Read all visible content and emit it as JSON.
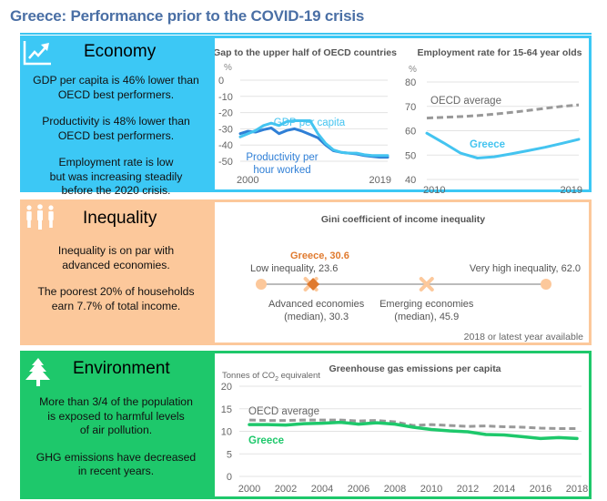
{
  "page": {
    "title": "Greece: Performance prior to the COVID-19 crisis"
  },
  "colors": {
    "economy": "#3cc8f5",
    "inequality": "#fcc89b",
    "environment": "#1ec86b",
    "title": "#4a6fa5",
    "gdp_line": "#44c4f0",
    "productivity_line": "#2f7fd6",
    "oecd_dashed": "#999999",
    "greece_orange": "#e07a2e",
    "greece_green": "#1ec86b"
  },
  "economy": {
    "icon": "trending-up-chart-icon",
    "heading": "Economy",
    "texts": [
      [
        "GDP per capita is 46% lower than",
        "OECD best performers."
      ],
      [
        "Productivity is 48% lower than",
        "OECD best performers."
      ],
      [
        "Employment rate is low",
        "but was increasing steadily",
        "before the 2020 crisis."
      ]
    ]
  },
  "inequality": {
    "icon": "people-group-icon",
    "heading": "Inequality",
    "texts": [
      [
        "Inequality is on par with",
        "advanced economies."
      ],
      [
        "The poorest 20% of households",
        "earn 7.7% of total income."
      ]
    ]
  },
  "environment": {
    "icon": "pine-tree-icon",
    "heading": "Environment",
    "texts": [
      [
        "More than 3/4 of the population",
        "is exposed to harmful levels",
        "of air pollution."
      ],
      [
        "GHG emissions have decreased",
        "in recent years."
      ]
    ]
  },
  "chart_data": [
    {
      "id": "gap",
      "type": "line",
      "title": "Gap to the upper half of OECD countries",
      "ylabel": "%",
      "ylim": [
        -50,
        0
      ],
      "yticks": [
        0,
        -10,
        -20,
        -30,
        -40,
        -50
      ],
      "xlim": [
        2000,
        2019
      ],
      "xticks": [
        2000,
        2019
      ],
      "grid": true,
      "series": [
        {
          "name": "GDP per capita",
          "label": "GDP per capita",
          "x": [
            2000,
            2001,
            2002,
            2003,
            2004,
            2005,
            2006,
            2007,
            2008,
            2009,
            2010,
            2011,
            2012,
            2013,
            2014,
            2015,
            2016,
            2017,
            2018,
            2019
          ],
          "values": [
            -35,
            -33,
            -31,
            -28,
            -26.5,
            -28,
            -25.5,
            -25,
            -25,
            -25,
            -33,
            -39,
            -43,
            -44.5,
            -45,
            -45,
            -46,
            -46.5,
            -46.5,
            -46.5
          ]
        },
        {
          "name": "Productivity per hour worked",
          "label": "Productivity per\nhour worked",
          "x": [
            2000,
            2001,
            2002,
            2003,
            2004,
            2005,
            2006,
            2007,
            2008,
            2009,
            2010,
            2011,
            2012,
            2013,
            2014,
            2015,
            2016,
            2017,
            2018,
            2019
          ],
          "values": [
            -33,
            -31.5,
            -32,
            -30.5,
            -29.5,
            -33,
            -31,
            -30,
            -31.5,
            -33.5,
            -35.5,
            -40,
            -43.5,
            -44.5,
            -45,
            -45.5,
            -46.5,
            -47,
            -47.5,
            -47.5
          ]
        }
      ]
    },
    {
      "id": "employment",
      "type": "line",
      "title": "Employment rate for 15-64 year olds",
      "ylabel": "%",
      "ylim": [
        40,
        80
      ],
      "yticks": [
        80,
        70,
        60,
        50,
        40
      ],
      "xlim": [
        2010,
        2019
      ],
      "xticks": [
        2010,
        2019
      ],
      "grid": true,
      "series": [
        {
          "name": "OECD average",
          "label": "OECD average",
          "style": "dashed",
          "x": [
            2010,
            2011,
            2012,
            2013,
            2014,
            2015,
            2016,
            2017,
            2018,
            2019
          ],
          "values": [
            65.2,
            65.5,
            65.8,
            66.2,
            66.8,
            67.5,
            68.3,
            69.2,
            70,
            70.6
          ]
        },
        {
          "name": "Greece",
          "label": "Greece",
          "x": [
            2010,
            2011,
            2012,
            2013,
            2014,
            2015,
            2016,
            2017,
            2018,
            2019
          ],
          "values": [
            59,
            55,
            50.8,
            48.8,
            49.3,
            50.5,
            51.8,
            53.2,
            54.8,
            56.5
          ]
        }
      ]
    },
    {
      "id": "gini",
      "type": "scatter",
      "title": "Gini coefficient of income inequality",
      "xlim": [
        23.6,
        62.0
      ],
      "points": [
        {
          "name": "Low inequality",
          "label": "Low inequality, 23.6",
          "value": 23.6,
          "marker": "circle"
        },
        {
          "name": "Greece",
          "label": "Greece,  30.6",
          "value": 30.6,
          "marker": "diamond"
        },
        {
          "name": "Advanced economies (median)",
          "label": [
            "Advanced economies",
            "(median), 30.3"
          ],
          "value": 30.3,
          "marker": "cross"
        },
        {
          "name": "Emerging economies (median)",
          "label": [
            "Emerging economies",
            "(median), 45.9"
          ],
          "value": 45.9,
          "marker": "cross"
        },
        {
          "name": "Very high inequality",
          "label": "Very high inequality, 62.0",
          "value": 62.0,
          "marker": "circle"
        }
      ],
      "note": "2018 or latest year available"
    },
    {
      "id": "ghg",
      "type": "line",
      "title": "Greenhouse gas emissions per capita",
      "ylabel": "Tonnes of CO2 equivalent",
      "ylabel_parts": [
        "Tonnes of CO",
        "2",
        " equivalent"
      ],
      "ylim": [
        0,
        20
      ],
      "yticks": [
        20,
        15,
        10,
        5,
        0
      ],
      "xlim": [
        2000,
        2018
      ],
      "xticks": [
        2000,
        2002,
        2004,
        2006,
        2008,
        2010,
        2012,
        2014,
        2016,
        2018
      ],
      "grid": true,
      "series": [
        {
          "name": "OECD average",
          "label": "OECD average",
          "style": "dashed",
          "x": [
            2000,
            2001,
            2002,
            2003,
            2004,
            2005,
            2006,
            2007,
            2008,
            2009,
            2010,
            2011,
            2012,
            2013,
            2014,
            2015,
            2016,
            2017,
            2018
          ],
          "values": [
            12.5,
            12.4,
            12.4,
            12.5,
            12.5,
            12.5,
            12.3,
            12.4,
            12.1,
            11.3,
            11.5,
            11.3,
            11.1,
            11.2,
            11.0,
            10.9,
            10.7,
            10.6,
            10.6
          ]
        },
        {
          "name": "Greece",
          "label": "Greece",
          "x": [
            2000,
            2001,
            2002,
            2003,
            2004,
            2005,
            2006,
            2007,
            2008,
            2009,
            2010,
            2011,
            2012,
            2013,
            2014,
            2015,
            2016,
            2017,
            2018
          ],
          "values": [
            11.5,
            11.5,
            11.4,
            11.7,
            11.8,
            12.0,
            11.6,
            11.9,
            11.6,
            10.9,
            10.4,
            10.1,
            9.9,
            9.3,
            9.2,
            8.8,
            8.4,
            8.6,
            8.4
          ]
        }
      ]
    }
  ]
}
